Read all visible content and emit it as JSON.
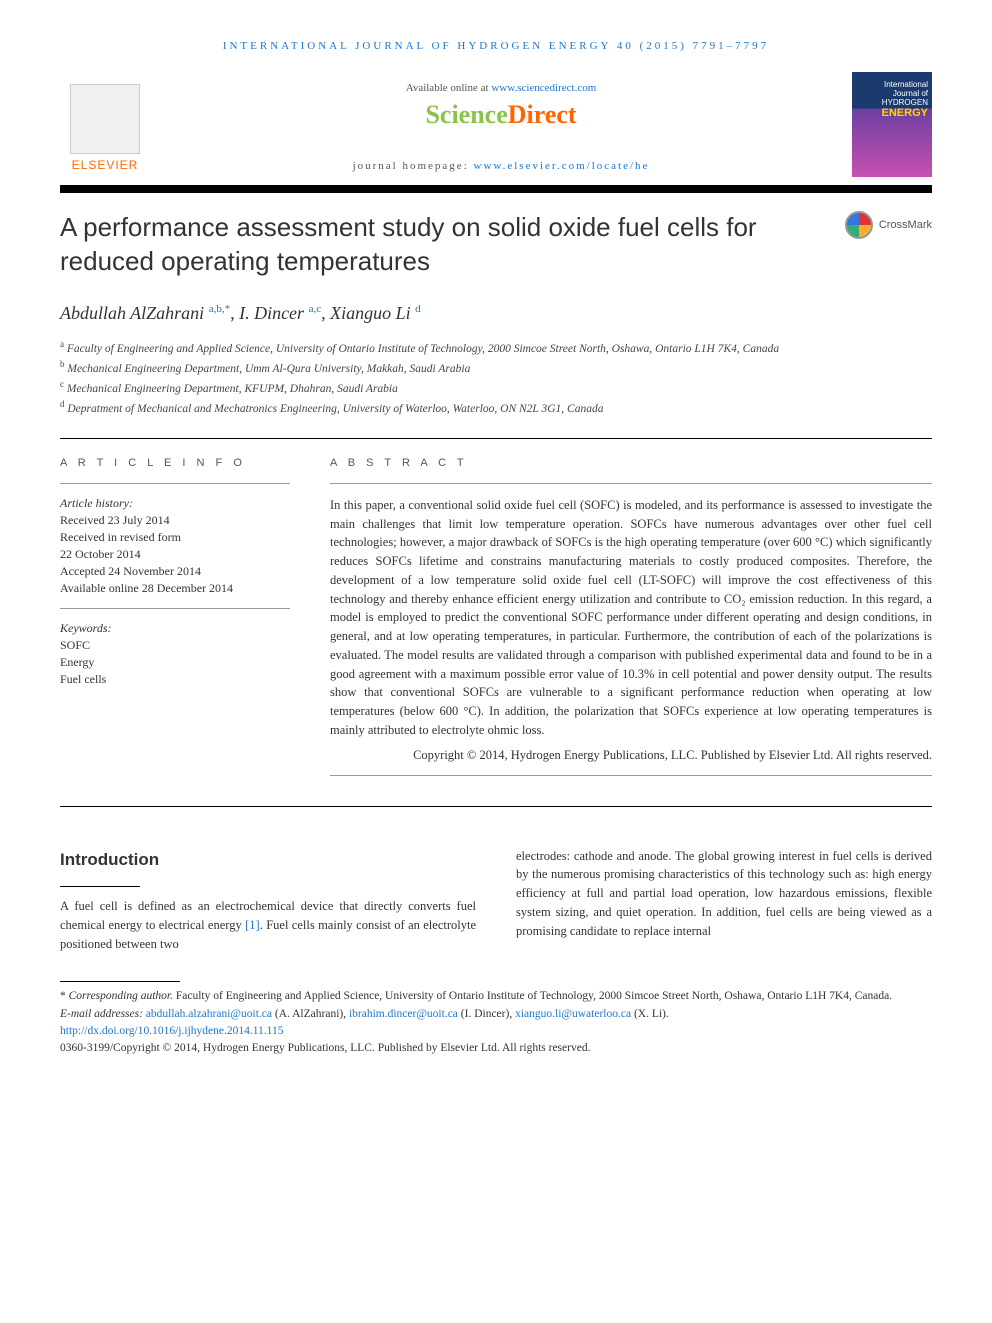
{
  "journal_header": "INTERNATIONAL JOURNAL OF HYDROGEN ENERGY 40 (2015) 7791–7797",
  "header": {
    "available_prefix": "Available online at ",
    "available_link": "www.sciencedirect.com",
    "scidirect_1": "Science",
    "scidirect_2": "Direct",
    "homepage_prefix": "journal homepage: ",
    "homepage_link": "www.elsevier.com/locate/he",
    "elsevier_label": "ELSEVIER",
    "cover_line1": "International Journal of",
    "cover_line2": "HYDROGEN",
    "cover_line3": "ENERGY"
  },
  "crossmark_label": "CrossMark",
  "title": "A performance assessment study on solid oxide fuel cells for reduced operating temperatures",
  "authors": [
    {
      "name": "Abdullah AlZahrani",
      "sup": "a,b,",
      "star": "*"
    },
    {
      "name": "I. Dincer",
      "sup": "a,c",
      "star": ""
    },
    {
      "name": "Xianguo Li",
      "sup": "d",
      "star": ""
    }
  ],
  "affiliations": [
    {
      "sup": "a",
      "text": "Faculty of Engineering and Applied Science, University of Ontario Institute of Technology, 2000 Simcoe Street North, Oshawa, Ontario L1H 7K4, Canada"
    },
    {
      "sup": "b",
      "text": "Mechanical Engineering Department, Umm Al-Qura University, Makkah, Saudi Arabia"
    },
    {
      "sup": "c",
      "text": "Mechanical Engineering Department, KFUPM, Dhahran, Saudi Arabia"
    },
    {
      "sup": "d",
      "text": "Depratment of Mechanical and Mechatronics Engineering, University of Waterloo, Waterloo, ON N2L 3G1, Canada"
    }
  ],
  "article_info": {
    "label": "A R T I C L E  I N F O",
    "history_head": "Article history:",
    "received": "Received 23 July 2014",
    "revised": "Received in revised form",
    "revised_date": "22 October 2014",
    "accepted": "Accepted 24 November 2014",
    "online": "Available online 28 December 2014",
    "keywords_head": "Keywords:",
    "keywords": [
      "SOFC",
      "Energy",
      "Fuel cells"
    ]
  },
  "abstract": {
    "label": "A B S T R A C T",
    "text": "In this paper, a conventional solid oxide fuel cell (SOFC) is modeled, and its performance is assessed to investigate the main challenges that limit low temperature operation. SOFCs have numerous advantages over other fuel cell technologies; however, a major drawback of SOFCs is the high operating temperature (over 600 °C) which significantly reduces SOFCs lifetime and constrains manufacturing materials to costly produced composites. Therefore, the development of a low temperature solid oxide fuel cell (LT-SOFC) will improve the cost effectiveness of this technology and thereby enhance efficient energy utilization and contribute to CO₂ emission reduction. In this regard, a model is employed to predict the conventional SOFC performance under different operating and design conditions, in general, and at low operating temperatures, in particular. Furthermore, the contribution of each of the polarizations is evaluated. The model results are validated through a comparison with published experimental data and found to be in a good agreement with a maximum possible error value of 10.3% in cell potential and power density output. The results show that conventional SOFCs are vulnerable to a significant performance reduction when operating at low temperatures (below 600 °C). In addition, the polarization that SOFCs experience at low operating temperatures is mainly attributed to electrolyte ohmic loss.",
    "copyright": "Copyright © 2014, Hydrogen Energy Publications, LLC. Published by Elsevier Ltd. All rights reserved."
  },
  "body": {
    "intro_heading": "Introduction",
    "col1": "A fuel cell is defined as an electrochemical device that directly converts fuel chemical energy to electrical energy ",
    "col1_ref": "[1]",
    "col1_cont": ". Fuel cells mainly consist of an electrolyte positioned between two",
    "col2": "electrodes: cathode and anode. The global growing interest in fuel cells is derived by the numerous promising characteristics of this technology such as: high energy efficiency at full and partial load operation, low hazardous emissions, flexible system sizing, and quiet operation. In addition, fuel cells are being viewed as a promising candidate to replace internal"
  },
  "footer": {
    "corr_star": "*",
    "corr_label": "Corresponding author.",
    "corr_text": " Faculty of Engineering and Applied Science, University of Ontario Institute of Technology, 2000 Simcoe Street North, Oshawa, Ontario L1H 7K4, Canada.",
    "email_label": "E-mail addresses: ",
    "emails": [
      {
        "addr": "abdullah.alzahrani@uoit.ca",
        "who": " (A. AlZahrani), "
      },
      {
        "addr": "ibrahim.dincer@uoit.ca",
        "who": " (I. Dincer), "
      },
      {
        "addr": "xianguo.li@uwaterloo.ca",
        "who": " (X. Li)."
      }
    ],
    "doi": "http://dx.doi.org/10.1016/j.ijhydene.2014.11.115",
    "issn_line": "0360-3199/Copyright © 2014, Hydrogen Energy Publications, LLC. Published by Elsevier Ltd. All rights reserved."
  }
}
